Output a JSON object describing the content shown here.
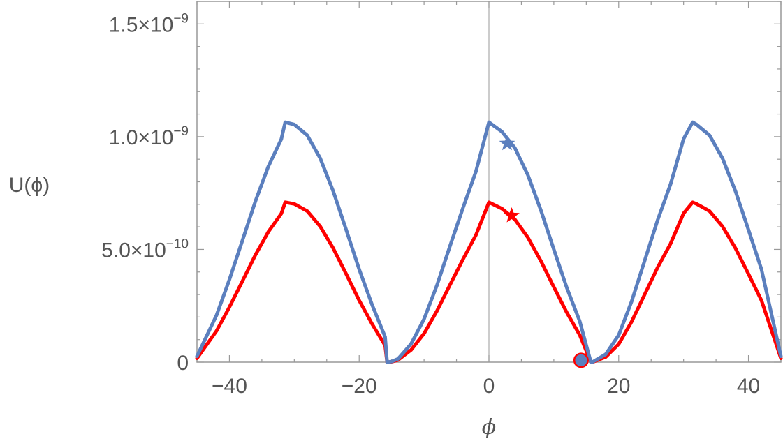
{
  "chart_data": {
    "type": "line",
    "xlabel": "ϕ",
    "ylabel": "U(ϕ)",
    "xlim": [
      -45,
      45
    ],
    "ylim": [
      0,
      1.6e-09
    ],
    "grid": false,
    "legend": "none",
    "x_ticks": [
      {
        "value": -40,
        "label": "−40"
      },
      {
        "value": -20,
        "label": "−20"
      },
      {
        "value": 0,
        "label": "0"
      },
      {
        "value": 20,
        "label": "20"
      },
      {
        "value": 40,
        "label": "40"
      }
    ],
    "y_ticks": [
      {
        "value": 0,
        "mantissa": "0",
        "exponent": ""
      },
      {
        "value": 5e-10,
        "mantissa": "5.0×10",
        "exponent": "−10"
      },
      {
        "value": 1e-09,
        "mantissa": "1.0×10",
        "exponent": "−9"
      },
      {
        "value": 1.5e-09,
        "mantissa": "1.5×10",
        "exponent": "−9"
      }
    ],
    "series": [
      {
        "color": "#5b7fbe",
        "x": [
          -45,
          -42,
          -40,
          -38,
          -36,
          -34,
          -32,
          -31.4,
          -30,
          -28,
          -26,
          -24,
          -22,
          -20,
          -18,
          -16,
          -15.7,
          -15,
          -14,
          -12,
          -10,
          -8,
          -6,
          -4,
          -2,
          0,
          2,
          4,
          6,
          8,
          10,
          12,
          14,
          15,
          15.7,
          16,
          18,
          20,
          22,
          24,
          26,
          28,
          30,
          31.4,
          32,
          34,
          36,
          38,
          40,
          42,
          45
        ],
        "y": [
          2.6e-11,
          2.07e-10,
          3.66e-10,
          5.39e-10,
          7.13e-10,
          8.68e-10,
          9.89e-10,
          1.064e-09,
          1.054e-09,
          1.006e-09,
          9.04e-10,
          7.58e-10,
          5.87e-10,
          4.12e-10,
          2.54e-10,
          1.12e-10,
          0.0,
          2.5e-12,
          1.49e-11,
          8.1e-11,
          1.91e-10,
          3.42e-10,
          5.15e-10,
          6.84e-10,
          8.46e-10,
          1.064e-09,
          1.022e-09,
          9.5e-10,
          8.3e-10,
          6.74e-10,
          5e-10,
          3.3e-10,
          1.81e-10,
          7.5e-11,
          1e-12,
          1.2e-12,
          3.5e-11,
          1.2e-10,
          2.7e-10,
          4.5e-10,
          6.3e-10,
          7.9e-10,
          9.9e-10,
          1.064e-09,
          1.054e-09,
          1.006e-09,
          9.04e-10,
          7.58e-10,
          5.87e-10,
          4.12e-10,
          2.6e-11
        ]
      },
      {
        "color": "#ff0000",
        "x": [
          -45,
          -42,
          -40,
          -38,
          -36,
          -34,
          -32,
          -31.4,
          -30,
          -28,
          -26,
          -24,
          -22,
          -20,
          -18,
          -16,
          -15.7,
          -15,
          -14,
          -12,
          -10,
          -8,
          -6,
          -4,
          -2,
          0,
          2,
          4,
          6,
          8,
          10,
          12,
          14,
          15,
          15.7,
          16,
          18,
          20,
          22,
          24,
          26,
          28,
          30,
          31.4,
          32,
          34,
          36,
          38,
          40,
          42,
          45
        ],
        "y": [
          1.7e-11,
          1.38e-10,
          2.44e-10,
          3.59e-10,
          4.75e-10,
          5.78e-10,
          6.59e-10,
          7.09e-10,
          7.02e-10,
          6.7e-10,
          6.02e-10,
          5.05e-10,
          3.91e-10,
          2.74e-10,
          1.69e-10,
          7.4e-11,
          0.0,
          1.7e-12,
          9.9e-12,
          5.4e-11,
          1.27e-10,
          2.28e-10,
          3.43e-10,
          4.56e-10,
          5.64e-10,
          7.09e-10,
          6.81e-10,
          6.33e-10,
          5.53e-10,
          4.49e-10,
          3.33e-10,
          2.2e-10,
          1.2e-10,
          5e-11,
          7e-13,
          8e-13,
          2.3e-11,
          8e-11,
          1.8e-10,
          3e-10,
          4.2e-10,
          5.26e-10,
          6.6e-10,
          7.09e-10,
          7.02e-10,
          6.7e-10,
          6.02e-10,
          5.05e-10,
          3.91e-10,
          2.74e-10,
          1.7e-11
        ]
      }
    ],
    "markers": [
      {
        "shape": "star",
        "x": 2.8,
        "y": 9.7e-10,
        "color": "#5b7fbe"
      },
      {
        "shape": "star",
        "x": 3.5,
        "y": 6.5e-10,
        "color": "#ff0000"
      },
      {
        "shape": "circle",
        "x": 14.2,
        "y": 2e-12,
        "color": "#ff0000"
      },
      {
        "shape": "circle",
        "x": 14.2,
        "y": 2e-12,
        "color": "#5b7fbe"
      }
    ]
  }
}
